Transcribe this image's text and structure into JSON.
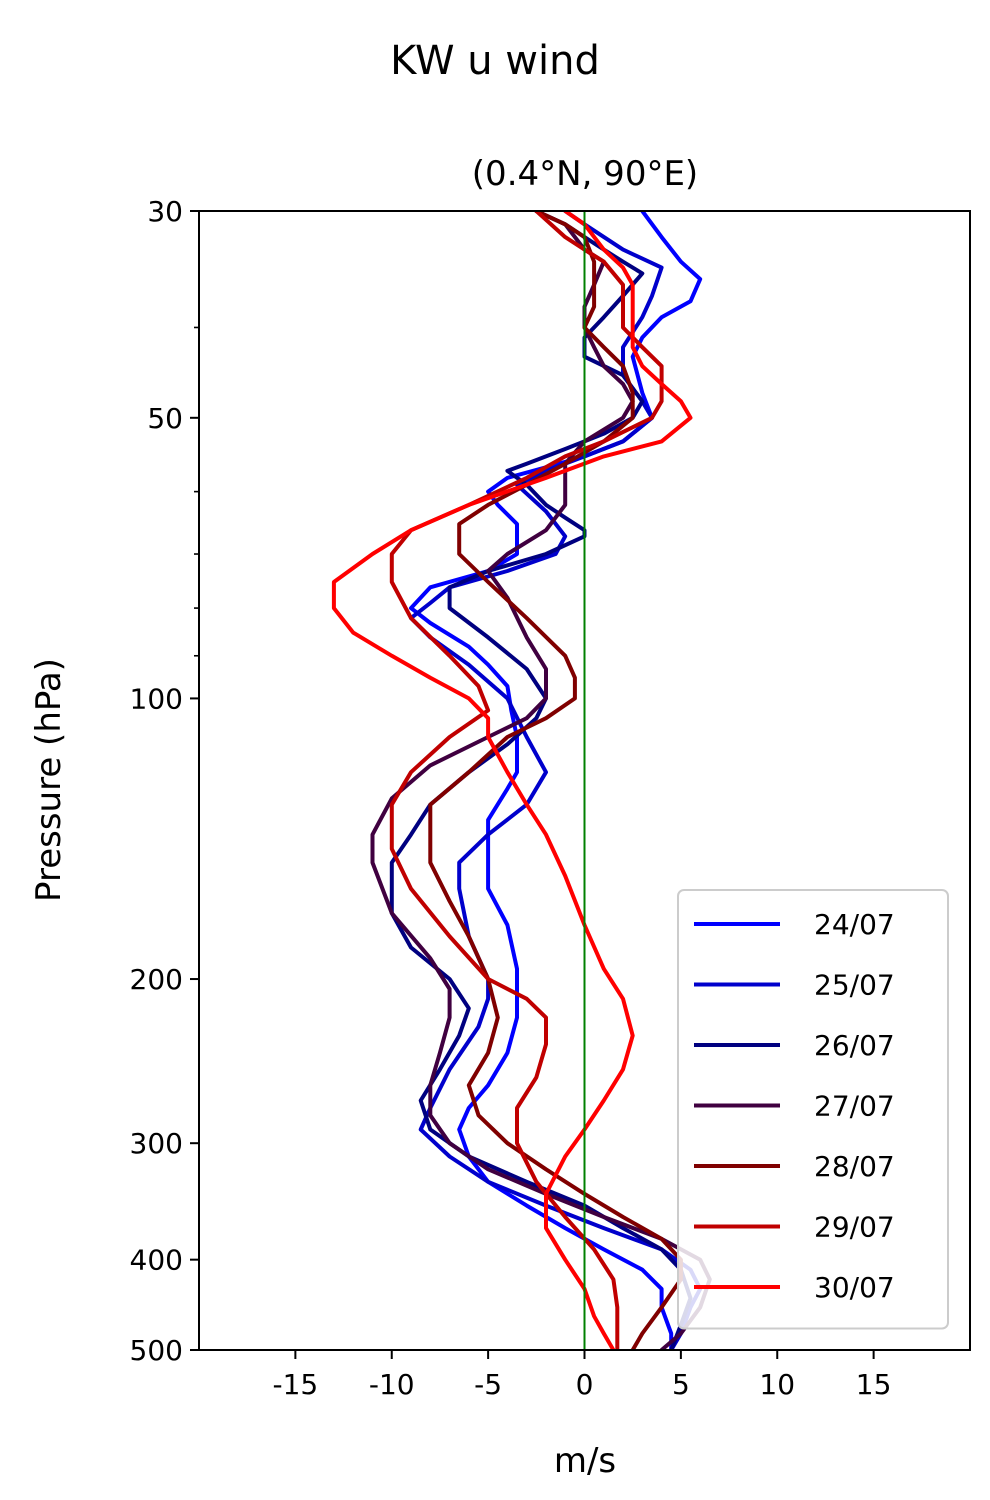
{
  "chart_data": {
    "type": "line",
    "suptitle": "KW u wind",
    "title": "(0.4°N, 90°E)",
    "xlabel": "m/s",
    "ylabel": "Pressure (hPa)",
    "xlim": [
      -20,
      20
    ],
    "ylim": [
      500,
      30
    ],
    "yscale": "log",
    "xticks": [
      -15,
      -10,
      -5,
      0,
      5,
      10,
      15
    ],
    "xtick_labels": [
      "-15",
      "-10",
      "-5",
      "0",
      "5",
      "10",
      "15"
    ],
    "yticks": [
      30,
      50,
      100,
      200,
      300,
      400,
      500
    ],
    "ytick_labels": [
      "30",
      "50",
      "100",
      "200",
      "300",
      "400",
      "500"
    ],
    "yminor_ticks": [
      40,
      60,
      70,
      80,
      90
    ],
    "zero_line": {
      "x": 0,
      "color": "#008000"
    },
    "grid": false,
    "legend_position": "lower right",
    "series": [
      {
        "name": "24/07",
        "color": "#0000ff",
        "points": [
          [
            3,
            30
          ],
          [
            4,
            32
          ],
          [
            5,
            34
          ],
          [
            6,
            35.5
          ],
          [
            5.5,
            37.5
          ],
          [
            4,
            39
          ],
          [
            3,
            41
          ],
          [
            2.5,
            43
          ],
          [
            3,
            47
          ],
          [
            3.5,
            50
          ],
          [
            2,
            53
          ],
          [
            0,
            55
          ],
          [
            -2,
            56.5
          ],
          [
            -4,
            58
          ],
          [
            -5,
            60
          ],
          [
            -4.5,
            62
          ],
          [
            -3.5,
            65
          ],
          [
            -3.5,
            70
          ],
          [
            -5,
            73
          ],
          [
            -8,
            76
          ],
          [
            -9,
            80
          ],
          [
            -8,
            83
          ],
          [
            -6,
            88
          ],
          [
            -5,
            92
          ],
          [
            -4,
            97
          ],
          [
            -3.8,
            103
          ],
          [
            -3.5,
            110
          ],
          [
            -3.5,
            120
          ],
          [
            -4,
            125
          ],
          [
            -5,
            135
          ],
          [
            -5,
            145
          ],
          [
            -5,
            160
          ],
          [
            -4,
            175
          ],
          [
            -3.5,
            195
          ],
          [
            -3.5,
            220
          ],
          [
            -4,
            240
          ],
          [
            -5,
            260
          ],
          [
            -6,
            275
          ],
          [
            -6.5,
            290
          ],
          [
            -6,
            310
          ],
          [
            -5,
            330
          ],
          [
            -3,
            350
          ],
          [
            -1,
            370
          ],
          [
            1,
            390
          ],
          [
            3,
            410
          ],
          [
            4,
            430
          ],
          [
            4,
            450
          ],
          [
            4.5,
            480
          ],
          [
            4.5,
            500
          ]
        ]
      },
      {
        "name": "25/07",
        "color": "#0000cc",
        "points": [
          [
            -1,
            30
          ],
          [
            0,
            31
          ],
          [
            2,
            33
          ],
          [
            4,
            34.5
          ],
          [
            3.5,
            37
          ],
          [
            3,
            39
          ],
          [
            2,
            42
          ],
          [
            2,
            45
          ],
          [
            3,
            48
          ],
          [
            3.5,
            50
          ],
          [
            2,
            53
          ],
          [
            0,
            55
          ],
          [
            -2,
            57
          ],
          [
            -3.5,
            59
          ],
          [
            -2,
            63
          ],
          [
            -1,
            67
          ],
          [
            -1.5,
            70
          ],
          [
            -4,
            73
          ],
          [
            -7,
            76
          ],
          [
            -8,
            79
          ],
          [
            -9,
            82
          ],
          [
            -8,
            86
          ],
          [
            -6,
            92
          ],
          [
            -4,
            100
          ],
          [
            -3,
            110
          ],
          [
            -2,
            120
          ],
          [
            -3,
            130
          ],
          [
            -5,
            140
          ],
          [
            -6.5,
            150
          ],
          [
            -6.5,
            160
          ],
          [
            -6,
            180
          ],
          [
            -5,
            200
          ],
          [
            -5,
            210
          ],
          [
            -5.5,
            225
          ],
          [
            -7,
            250
          ],
          [
            -8,
            275
          ],
          [
            -8.5,
            290
          ],
          [
            -7,
            310
          ],
          [
            -5,
            330
          ],
          [
            -2,
            350
          ],
          [
            1,
            370
          ],
          [
            4,
            390
          ],
          [
            5.5,
            410
          ],
          [
            6,
            430
          ],
          [
            5.5,
            450
          ],
          [
            5,
            480
          ],
          [
            4.5,
            500
          ]
        ]
      },
      {
        "name": "26/07",
        "color": "#000080",
        "points": [
          [
            -2.5,
            30
          ],
          [
            -1,
            31
          ],
          [
            0,
            32
          ],
          [
            1,
            33
          ],
          [
            2,
            34
          ],
          [
            3,
            35
          ],
          [
            2,
            37
          ],
          [
            1,
            39
          ],
          [
            0,
            41
          ],
          [
            0,
            43
          ],
          [
            2,
            45
          ],
          [
            3,
            48
          ],
          [
            2.5,
            50
          ],
          [
            1,
            52
          ],
          [
            -1,
            54
          ],
          [
            -3,
            56
          ],
          [
            -4,
            57
          ],
          [
            -3,
            59
          ],
          [
            -2,
            62
          ],
          [
            -1,
            64
          ],
          [
            0,
            66
          ],
          [
            0,
            67
          ],
          [
            -2,
            70
          ],
          [
            -5,
            73
          ],
          [
            -7,
            76
          ],
          [
            -7,
            80
          ],
          [
            -5,
            86
          ],
          [
            -3,
            93
          ],
          [
            -2,
            100
          ],
          [
            -2.5,
            105
          ],
          [
            -4,
            112
          ],
          [
            -6,
            120
          ],
          [
            -8,
            130
          ],
          [
            -9,
            140
          ],
          [
            -10,
            150
          ],
          [
            -10,
            170
          ],
          [
            -9,
            185
          ],
          [
            -7,
            200
          ],
          [
            -6,
            215
          ],
          [
            -6.5,
            230
          ],
          [
            -7.5,
            250
          ],
          [
            -8.5,
            270
          ],
          [
            -8,
            290
          ],
          [
            -6,
            310
          ],
          [
            -3,
            330
          ],
          [
            0,
            350
          ],
          [
            2,
            370
          ],
          [
            4,
            390
          ],
          [
            5,
            410
          ],
          [
            5.5,
            440
          ],
          [
            5,
            470
          ],
          [
            4.5,
            500
          ]
        ]
      },
      {
        "name": "27/07",
        "color": "#400040",
        "points": [
          [
            -2.5,
            30
          ],
          [
            -1,
            31
          ],
          [
            0,
            33
          ],
          [
            1,
            34
          ],
          [
            0.5,
            36
          ],
          [
            0,
            38
          ],
          [
            0,
            40
          ],
          [
            0.5,
            42
          ],
          [
            1,
            44
          ],
          [
            2,
            46
          ],
          [
            2.5,
            48
          ],
          [
            2,
            50
          ],
          [
            0,
            53
          ],
          [
            -1,
            56
          ],
          [
            -1,
            59
          ],
          [
            -1,
            62
          ],
          [
            -2,
            66
          ],
          [
            -4,
            70
          ],
          [
            -5,
            73
          ],
          [
            -4,
            78
          ],
          [
            -3,
            86
          ],
          [
            -2,
            93
          ],
          [
            -2,
            100
          ],
          [
            -3,
            105
          ],
          [
            -5,
            110
          ],
          [
            -8,
            118
          ],
          [
            -10,
            128
          ],
          [
            -11,
            140
          ],
          [
            -11,
            150
          ],
          [
            -10,
            170
          ],
          [
            -8,
            190
          ],
          [
            -7,
            205
          ],
          [
            -7,
            220
          ],
          [
            -7.5,
            240
          ],
          [
            -8,
            260
          ],
          [
            -8,
            280
          ],
          [
            -7,
            300
          ],
          [
            -5,
            320
          ],
          [
            -2,
            340
          ],
          [
            1,
            360
          ],
          [
            4,
            380
          ],
          [
            6,
            400
          ],
          [
            6.5,
            420
          ],
          [
            6,
            450
          ],
          [
            5,
            480
          ],
          [
            4,
            500
          ]
        ]
      },
      {
        "name": "28/07",
        "color": "#800000",
        "points": [
          [
            -2.5,
            30
          ],
          [
            -1,
            31
          ],
          [
            0,
            32
          ],
          [
            0.5,
            34
          ],
          [
            0.5,
            36
          ],
          [
            0.5,
            38
          ],
          [
            0,
            40
          ],
          [
            1,
            42
          ],
          [
            2,
            44
          ],
          [
            2.5,
            47
          ],
          [
            2.5,
            50
          ],
          [
            1,
            53
          ],
          [
            -1,
            56
          ],
          [
            -3,
            59
          ],
          [
            -5,
            62
          ],
          [
            -6.5,
            65
          ],
          [
            -6.5,
            70
          ],
          [
            -5,
            75
          ],
          [
            -3,
            82
          ],
          [
            -1,
            90
          ],
          [
            -0.5,
            95
          ],
          [
            -0.5,
            100
          ],
          [
            -2,
            105
          ],
          [
            -4,
            110
          ],
          [
            -6,
            120
          ],
          [
            -8,
            130
          ],
          [
            -8,
            140
          ],
          [
            -8,
            150
          ],
          [
            -7,
            165
          ],
          [
            -6,
            180
          ],
          [
            -5,
            200
          ],
          [
            -4.5,
            220
          ],
          [
            -5,
            240
          ],
          [
            -6,
            260
          ],
          [
            -5.5,
            280
          ],
          [
            -4,
            300
          ],
          [
            -2,
            320
          ],
          [
            0,
            340
          ],
          [
            2,
            360
          ],
          [
            4,
            380
          ],
          [
            5,
            400
          ],
          [
            5,
            420
          ],
          [
            4,
            450
          ],
          [
            3,
            480
          ],
          [
            2.5,
            500
          ]
        ]
      },
      {
        "name": "29/07",
        "color": "#c00000",
        "points": [
          [
            -2.5,
            30
          ],
          [
            -1,
            32
          ],
          [
            0,
            33
          ],
          [
            1,
            34
          ],
          [
            2,
            36
          ],
          [
            2,
            38
          ],
          [
            2,
            40
          ],
          [
            3,
            42
          ],
          [
            4,
            44
          ],
          [
            4,
            48
          ],
          [
            3.5,
            50
          ],
          [
            1,
            53
          ],
          [
            -1,
            55
          ],
          [
            -3,
            58
          ],
          [
            -6,
            62
          ],
          [
            -9,
            66
          ],
          [
            -10,
            70
          ],
          [
            -10,
            75
          ],
          [
            -9,
            82
          ],
          [
            -7,
            90
          ],
          [
            -5.5,
            97
          ],
          [
            -5,
            103
          ],
          [
            -7,
            110
          ],
          [
            -9,
            120
          ],
          [
            -10,
            130
          ],
          [
            -10,
            145
          ],
          [
            -9,
            160
          ],
          [
            -7,
            180
          ],
          [
            -5,
            200
          ],
          [
            -3,
            210
          ],
          [
            -2,
            220
          ],
          [
            -2,
            235
          ],
          [
            -2.5,
            255
          ],
          [
            -3.5,
            275
          ],
          [
            -3.5,
            300
          ],
          [
            -2.5,
            330
          ],
          [
            -1,
            360
          ],
          [
            0.5,
            390
          ],
          [
            1.5,
            420
          ],
          [
            1.7,
            450
          ],
          [
            1.7,
            480
          ],
          [
            1.7,
            500
          ]
        ]
      },
      {
        "name": "30/07",
        "color": "#ff0000",
        "points": [
          [
            -1,
            30
          ],
          [
            0,
            31
          ],
          [
            1,
            33
          ],
          [
            2,
            34.5
          ],
          [
            2.5,
            36
          ],
          [
            2.5,
            39
          ],
          [
            2.5,
            42
          ],
          [
            3,
            44
          ],
          [
            4,
            46
          ],
          [
            5,
            48
          ],
          [
            5.5,
            50
          ],
          [
            4,
            53
          ],
          [
            1,
            55
          ],
          [
            -2,
            58
          ],
          [
            -6,
            62
          ],
          [
            -9,
            66
          ],
          [
            -11,
            70
          ],
          [
            -13,
            75
          ],
          [
            -13,
            80
          ],
          [
            -12,
            85
          ],
          [
            -10,
            90
          ],
          [
            -8,
            95
          ],
          [
            -6,
            100
          ],
          [
            -5,
            105
          ],
          [
            -5,
            110
          ],
          [
            -4,
            120
          ],
          [
            -3,
            130
          ],
          [
            -2,
            140
          ],
          [
            -1,
            155
          ],
          [
            0,
            175
          ],
          [
            1,
            195
          ],
          [
            2,
            210
          ],
          [
            2.5,
            230
          ],
          [
            2,
            250
          ],
          [
            1,
            270
          ],
          [
            0,
            290
          ],
          [
            -1,
            310
          ],
          [
            -2,
            340
          ],
          [
            -2,
            370
          ],
          [
            -1,
            400
          ],
          [
            0,
            430
          ],
          [
            0.5,
            460
          ],
          [
            1,
            480
          ],
          [
            1.5,
            500
          ]
        ]
      }
    ]
  }
}
